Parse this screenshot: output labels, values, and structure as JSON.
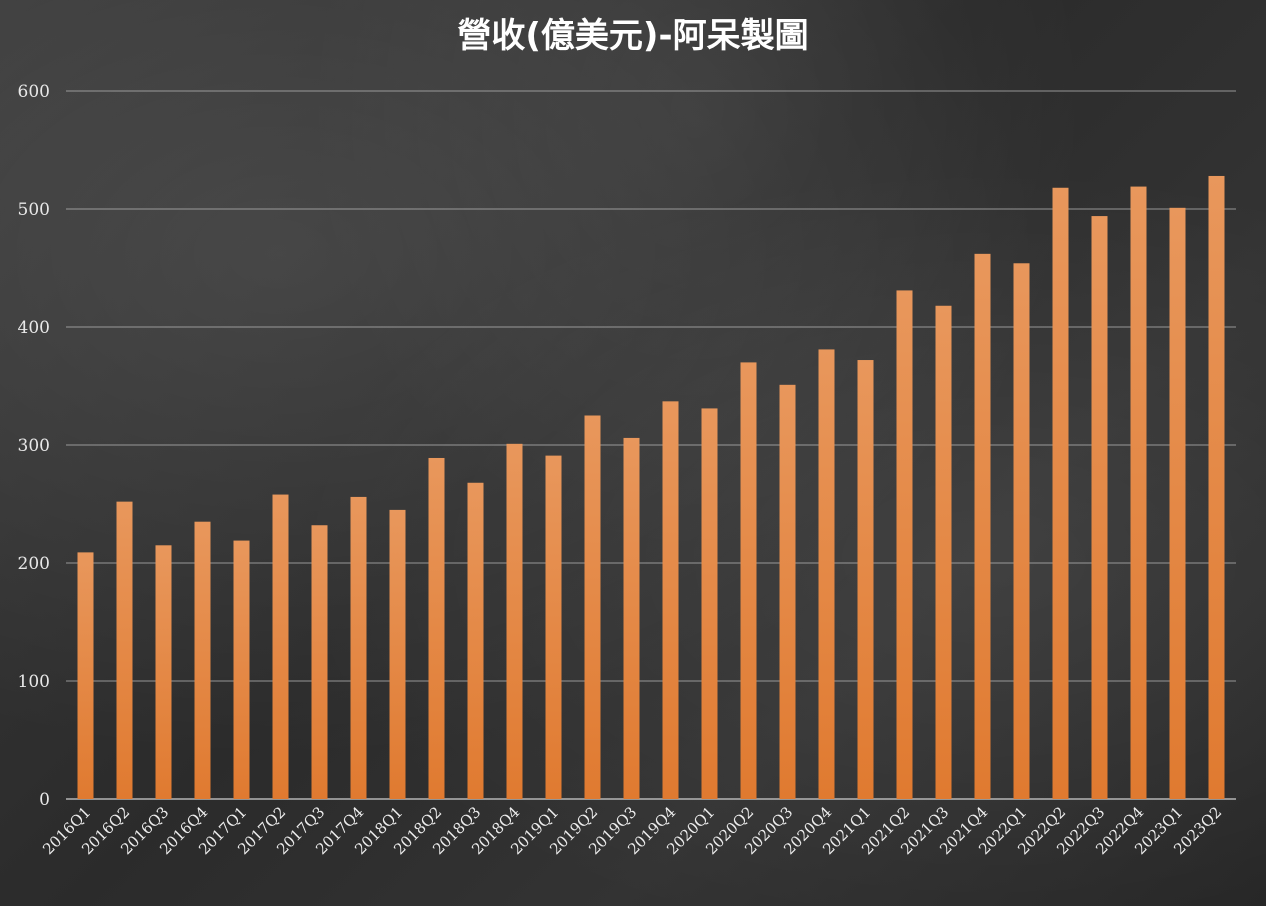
{
  "colors": {
    "bar_top": "#e8975c",
    "bar_bottom": "#e07a30",
    "title": "#ffffff",
    "grid": "#b8b8b8"
  },
  "chart_data": {
    "type": "bar",
    "title": "營收(億美元)-阿呆製圖",
    "xlabel": "",
    "ylabel": "",
    "ylim": [
      0,
      600
    ],
    "yticks": [
      0,
      100,
      200,
      300,
      400,
      500,
      600
    ],
    "grid": true,
    "legend": "none",
    "categories": [
      "2016Q1",
      "2016Q2",
      "2016Q3",
      "2016Q4",
      "2017Q1",
      "2017Q2",
      "2017Q3",
      "2017Q4",
      "2018Q1",
      "2018Q2",
      "2018Q3",
      "2018Q4",
      "2019Q1",
      "2019Q2",
      "2019Q3",
      "2019Q4",
      "2020Q1",
      "2020Q2",
      "2020Q3",
      "2020Q4",
      "2021Q1",
      "2021Q2",
      "2021Q3",
      "2021Q4",
      "2022Q1",
      "2022Q2",
      "2022Q3",
      "2022Q4",
      "2023Q1",
      "2023Q2"
    ],
    "values": [
      209,
      252,
      215,
      235,
      219,
      258,
      232,
      256,
      245,
      289,
      268,
      301,
      291,
      325,
      306,
      337,
      331,
      370,
      351,
      381,
      372,
      431,
      418,
      462,
      454,
      518,
      494,
      519,
      501,
      528
    ]
  }
}
